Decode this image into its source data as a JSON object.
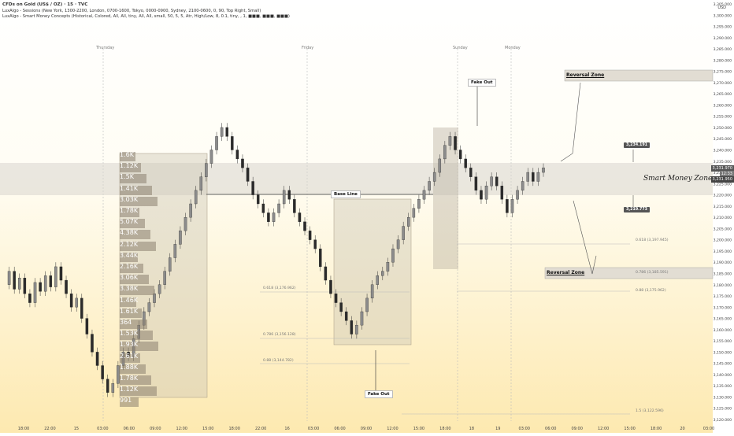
{
  "header": {
    "line1": "CFDs on Gold (US$ / OZ) · 15 · TVC",
    "line2": "LuxAlgo - Sessions (New York, 1300-2200, London, 0700-1600, Tokyo, 0000-0900, Sydney, 2100-0600, 0, 90, Top Right, Small)",
    "line3": "LuxAlgo - Smart Money Concepts (Historical, Colored, All, All, tiny, All, All, small, 50, 5, 5, Atr, High/Low, 8, 0.1, tiny, , 1, ■■■, ■■■, ■■■)"
  },
  "currency": "USD",
  "day_labels": [
    "Thursday",
    "Friday",
    "Sunday",
    "Monday"
  ],
  "annotations": {
    "fake_out_top": "Fake Out",
    "fake_out_bottom": "Fake Out",
    "base_line": "Base Line",
    "reversal_zone_upper": "Reversal Zone",
    "reversal_zone_lower": "Reversal Zone",
    "smart_money_zone": "Smart Money Zone"
  },
  "price_tags": {
    "upper": "3,234.191",
    "lower": "3,219.773",
    "current": "3,231.970",
    "current_time": "12:33",
    "current_low": "3,231.950"
  },
  "fib_left": [
    {
      "label": "0.618 (3,176.962)"
    },
    {
      "label": "0.786 (3,156.128)"
    },
    {
      "label": "0.88 (3,144.782)"
    }
  ],
  "fib_right": [
    {
      "label": "0.618 (3,197.945)"
    },
    {
      "label": "0.786 (3,185.591)"
    },
    {
      "label": "0.88 (3,175.962)"
    },
    {
      "label": "1.5 (3,122.596)"
    }
  ],
  "volume_profile_labels": [
    "1.6K",
    "1.12K",
    "1.5K",
    "1.41K",
    "3.03K",
    "1.78K",
    "5.07K",
    "4.38K",
    "2.12K",
    "3.44K",
    "2.16K",
    "3.06K",
    "3.38K",
    "1.46K",
    "1.61K",
    "364",
    "1.53K",
    "1.93K",
    "2.61K",
    "1.88K",
    "1.78K",
    "1.12K",
    "991"
  ],
  "chart_data": {
    "type": "line",
    "title": "CFDs on Gold (US$ / OZ) · 15 · TVC",
    "ylabel": "USD",
    "ylim": [
      3120,
      3305
    ],
    "yticks": [
      3305,
      3300,
      3295,
      3290,
      3285,
      3280,
      3275,
      3270,
      3265,
      3260,
      3255,
      3250,
      3245,
      3240,
      3235,
      3230,
      3225,
      3220,
      3215,
      3210,
      3205,
      3200,
      3195,
      3190,
      3185,
      3180,
      3175,
      3170,
      3165,
      3160,
      3155,
      3150,
      3145,
      3140,
      3135,
      3130,
      3125,
      3120
    ],
    "yticks_text": [
      "3,305.000",
      "3,300.000",
      "3,295.000",
      "3,290.000",
      "3,285.000",
      "3,280.000",
      "3,275.000",
      "3,270.000",
      "3,265.000",
      "3,260.000",
      "3,255.000",
      "3,250.000",
      "3,245.000",
      "3,240.000",
      "3,235.000",
      "3,230.000",
      "3,225.000",
      "3,220.000",
      "3,215.000",
      "3,210.000",
      "3,205.000",
      "3,200.000",
      "3,195.000",
      "3,190.000",
      "3,185.000",
      "3,180.000",
      "3,175.000",
      "3,170.000",
      "3,165.000",
      "3,160.000",
      "3,155.000",
      "3,150.000",
      "3,145.000",
      "3,140.000",
      "3,135.000",
      "3,130.000",
      "3,125.000",
      "3,120.000"
    ],
    "xticks": [
      "18:00",
      "22:00",
      "15",
      "03:00",
      "06:00",
      "09:00",
      "12:00",
      "15:00",
      "18:00",
      "22:00",
      "16",
      "03:00",
      "06:00",
      "09:00",
      "12:00",
      "15:00",
      "18:00",
      "18",
      "19",
      "03:00",
      "06:00",
      "09:00",
      "12:00",
      "15:00",
      "18:00",
      "20",
      "03:00"
    ],
    "series": [
      {
        "values": [
          3180,
          3186,
          3178,
          3183,
          3176,
          3172,
          3181,
          3177,
          3184,
          3179,
          3188,
          3182,
          3176,
          3170,
          3174,
          3165,
          3158,
          3150,
          3144,
          3138,
          3132,
          3136,
          3144,
          3150,
          3148,
          3156,
          3162,
          3168,
          3172,
          3176,
          3180,
          3186,
          3192,
          3198,
          3204,
          3210,
          3216,
          3222,
          3228,
          3234,
          3240,
          3246,
          3250,
          3246,
          3240,
          3236,
          3232,
          3226,
          3220,
          3216,
          3212,
          3208,
          3212,
          3216,
          3222,
          3218,
          3212,
          3208,
          3204,
          3200,
          3196,
          3188,
          3182,
          3176,
          3172,
          3168,
          3164,
          3158,
          3162,
          3168,
          3174,
          3180,
          3184,
          3186,
          3190,
          3196,
          3200,
          3206,
          3210,
          3214,
          3218,
          3222,
          3226,
          3230,
          3236,
          3242,
          3246,
          3240,
          3236,
          3232,
          3228,
          3222,
          3218,
          3224,
          3228,
          3224,
          3218,
          3212,
          3218,
          3222,
          3226,
          3230,
          3226,
          3230,
          3232
        ]
      }
    ],
    "x_positions": [
      0,
      5,
      10,
      15,
      20,
      25,
      30,
      35,
      40,
      45,
      50,
      55,
      60,
      65,
      70,
      75,
      80,
      85,
      90,
      95,
      100,
      105,
      110,
      115,
      120,
      125,
      130,
      135,
      140,
      145,
      150,
      155,
      160,
      165,
      170,
      175,
      180,
      185,
      190,
      195,
      200,
      205,
      210,
      215,
      220,
      225,
      230,
      235,
      240,
      245,
      250,
      255,
      260,
      265,
      270,
      275,
      280,
      285,
      290,
      295,
      300,
      305,
      310,
      315,
      320,
      325,
      330,
      335,
      340,
      345,
      350,
      355,
      360,
      365,
      370,
      375,
      380,
      385,
      390,
      395,
      400,
      405,
      410,
      415,
      420,
      425,
      430,
      435,
      440,
      445,
      450,
      455,
      460,
      465,
      470,
      475,
      480,
      485,
      490,
      495,
      500,
      505,
      510,
      515,
      520
    ],
    "grid": false,
    "legend": "none",
    "colors": {
      "bull": "#8c8c8c",
      "bear": "#2b2b2b",
      "zone": "#b8b8b8",
      "profile": "#8a7f70"
    }
  }
}
